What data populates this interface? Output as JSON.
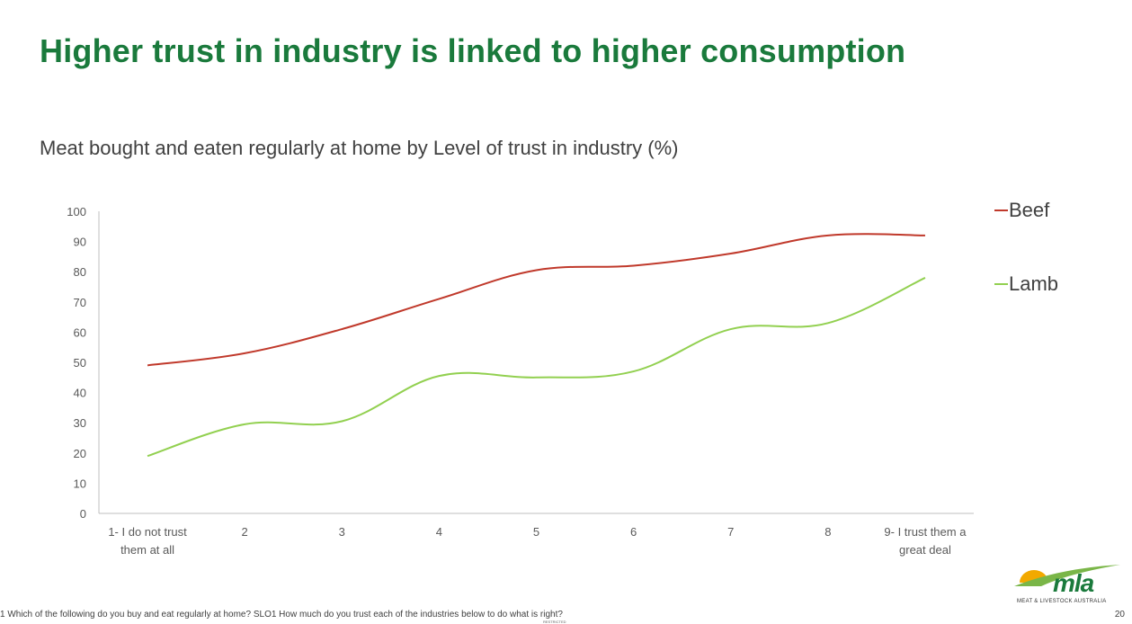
{
  "slide": {
    "title": "Higher trust in industry is linked to higher consumption",
    "footnote": "1 Which of the following do you buy and eat regularly at home? SLO1 How much do you trust each of the industries below to do what is right?",
    "page_number": "20",
    "restricted_label": "RESTRICTED"
  },
  "logo": {
    "text": "mla",
    "subtitle": "MEAT & LIVESTOCK AUSTRALIA",
    "colors": {
      "sun": "#f2a900",
      "green": "#1a7a3c",
      "hill": "#7ab648"
    }
  },
  "chart_data": {
    "type": "line",
    "title": "Meat bought and eaten regularly at home by Level of trust in industry (%)",
    "categories": [
      "1- I do not trust them at all",
      "2",
      "3",
      "4",
      "5",
      "6",
      "7",
      "8",
      "9- I trust them a great deal"
    ],
    "category_lines": [
      [
        "1- I do not trust",
        "them at all"
      ],
      [
        "2"
      ],
      [
        "3"
      ],
      [
        "4"
      ],
      [
        "5"
      ],
      [
        "6"
      ],
      [
        "7"
      ],
      [
        "8"
      ],
      [
        "9- I trust them a",
        "great deal"
      ]
    ],
    "series": [
      {
        "name": "Beef",
        "color": "#c0392b",
        "values": [
          49,
          53,
          61,
          71,
          80.5,
          82,
          86,
          92,
          92
        ]
      },
      {
        "name": "Lamb",
        "color": "#92d050",
        "values": [
          19,
          29.5,
          30.5,
          45.5,
          45,
          47,
          61,
          63,
          78
        ]
      }
    ],
    "ylim": [
      0,
      100
    ],
    "yticks": [
      0,
      10,
      20,
      30,
      40,
      50,
      60,
      70,
      80,
      90,
      100
    ],
    "grid": false,
    "smooth": true,
    "legend_position": "right"
  }
}
